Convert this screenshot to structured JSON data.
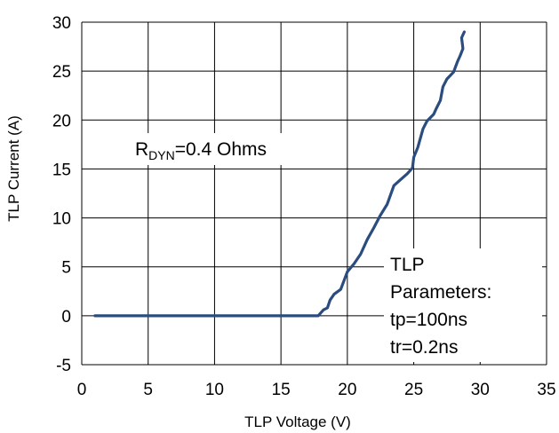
{
  "chart_data": {
    "type": "line",
    "title": "",
    "xlabel": "TLP Voltage (V)",
    "ylabel": "TLP Current (A)",
    "xlim": [
      0,
      35
    ],
    "ylim": [
      -5,
      30
    ],
    "x_ticks": [
      "0",
      "5",
      "10",
      "15",
      "20",
      "25",
      "30",
      "35"
    ],
    "y_ticks": [
      "-5",
      "0",
      "5",
      "10",
      "15",
      "20",
      "25",
      "30"
    ],
    "x_tick_values": [
      0,
      5,
      10,
      15,
      20,
      25,
      30,
      35
    ],
    "y_tick_values": [
      -5,
      0,
      5,
      10,
      15,
      20,
      25,
      30
    ],
    "grid": true,
    "line_color": "#2b4c7e",
    "series": [
      {
        "x": [
          1,
          5,
          10,
          15,
          17.8,
          18.2,
          18.5,
          18.7,
          19.0,
          19.5,
          20.0,
          20.5,
          21.0,
          21.5,
          22.0,
          22.5,
          23.0,
          23.5,
          24.0,
          24.5,
          24.9,
          25.0,
          25.3,
          25.7,
          26.0,
          26.5,
          26.7,
          27.0,
          27.2,
          27.5,
          28.0,
          28.3,
          28.5,
          28.7,
          28.6,
          28.8
        ],
        "y": [
          0,
          0,
          0,
          0,
          0,
          0.6,
          0.8,
          1.6,
          2.2,
          2.7,
          4.5,
          5.3,
          6.3,
          7.8,
          9.0,
          10.3,
          11.4,
          13.3,
          13.9,
          14.5,
          15.1,
          16.2,
          17.2,
          19.1,
          19.9,
          20.6,
          21.2,
          22.0,
          23.4,
          24.2,
          24.9,
          26.0,
          26.6,
          27.3,
          28.4,
          29.0
        ]
      }
    ],
    "annotations": {
      "rdyn_main": "R",
      "rdyn_sub": "DYN",
      "rdyn_rest": "=0.4  Ohms",
      "params": [
        "TLP",
        "Parameters:",
        "tp=100ns",
        "tr=0.2ns"
      ]
    }
  }
}
